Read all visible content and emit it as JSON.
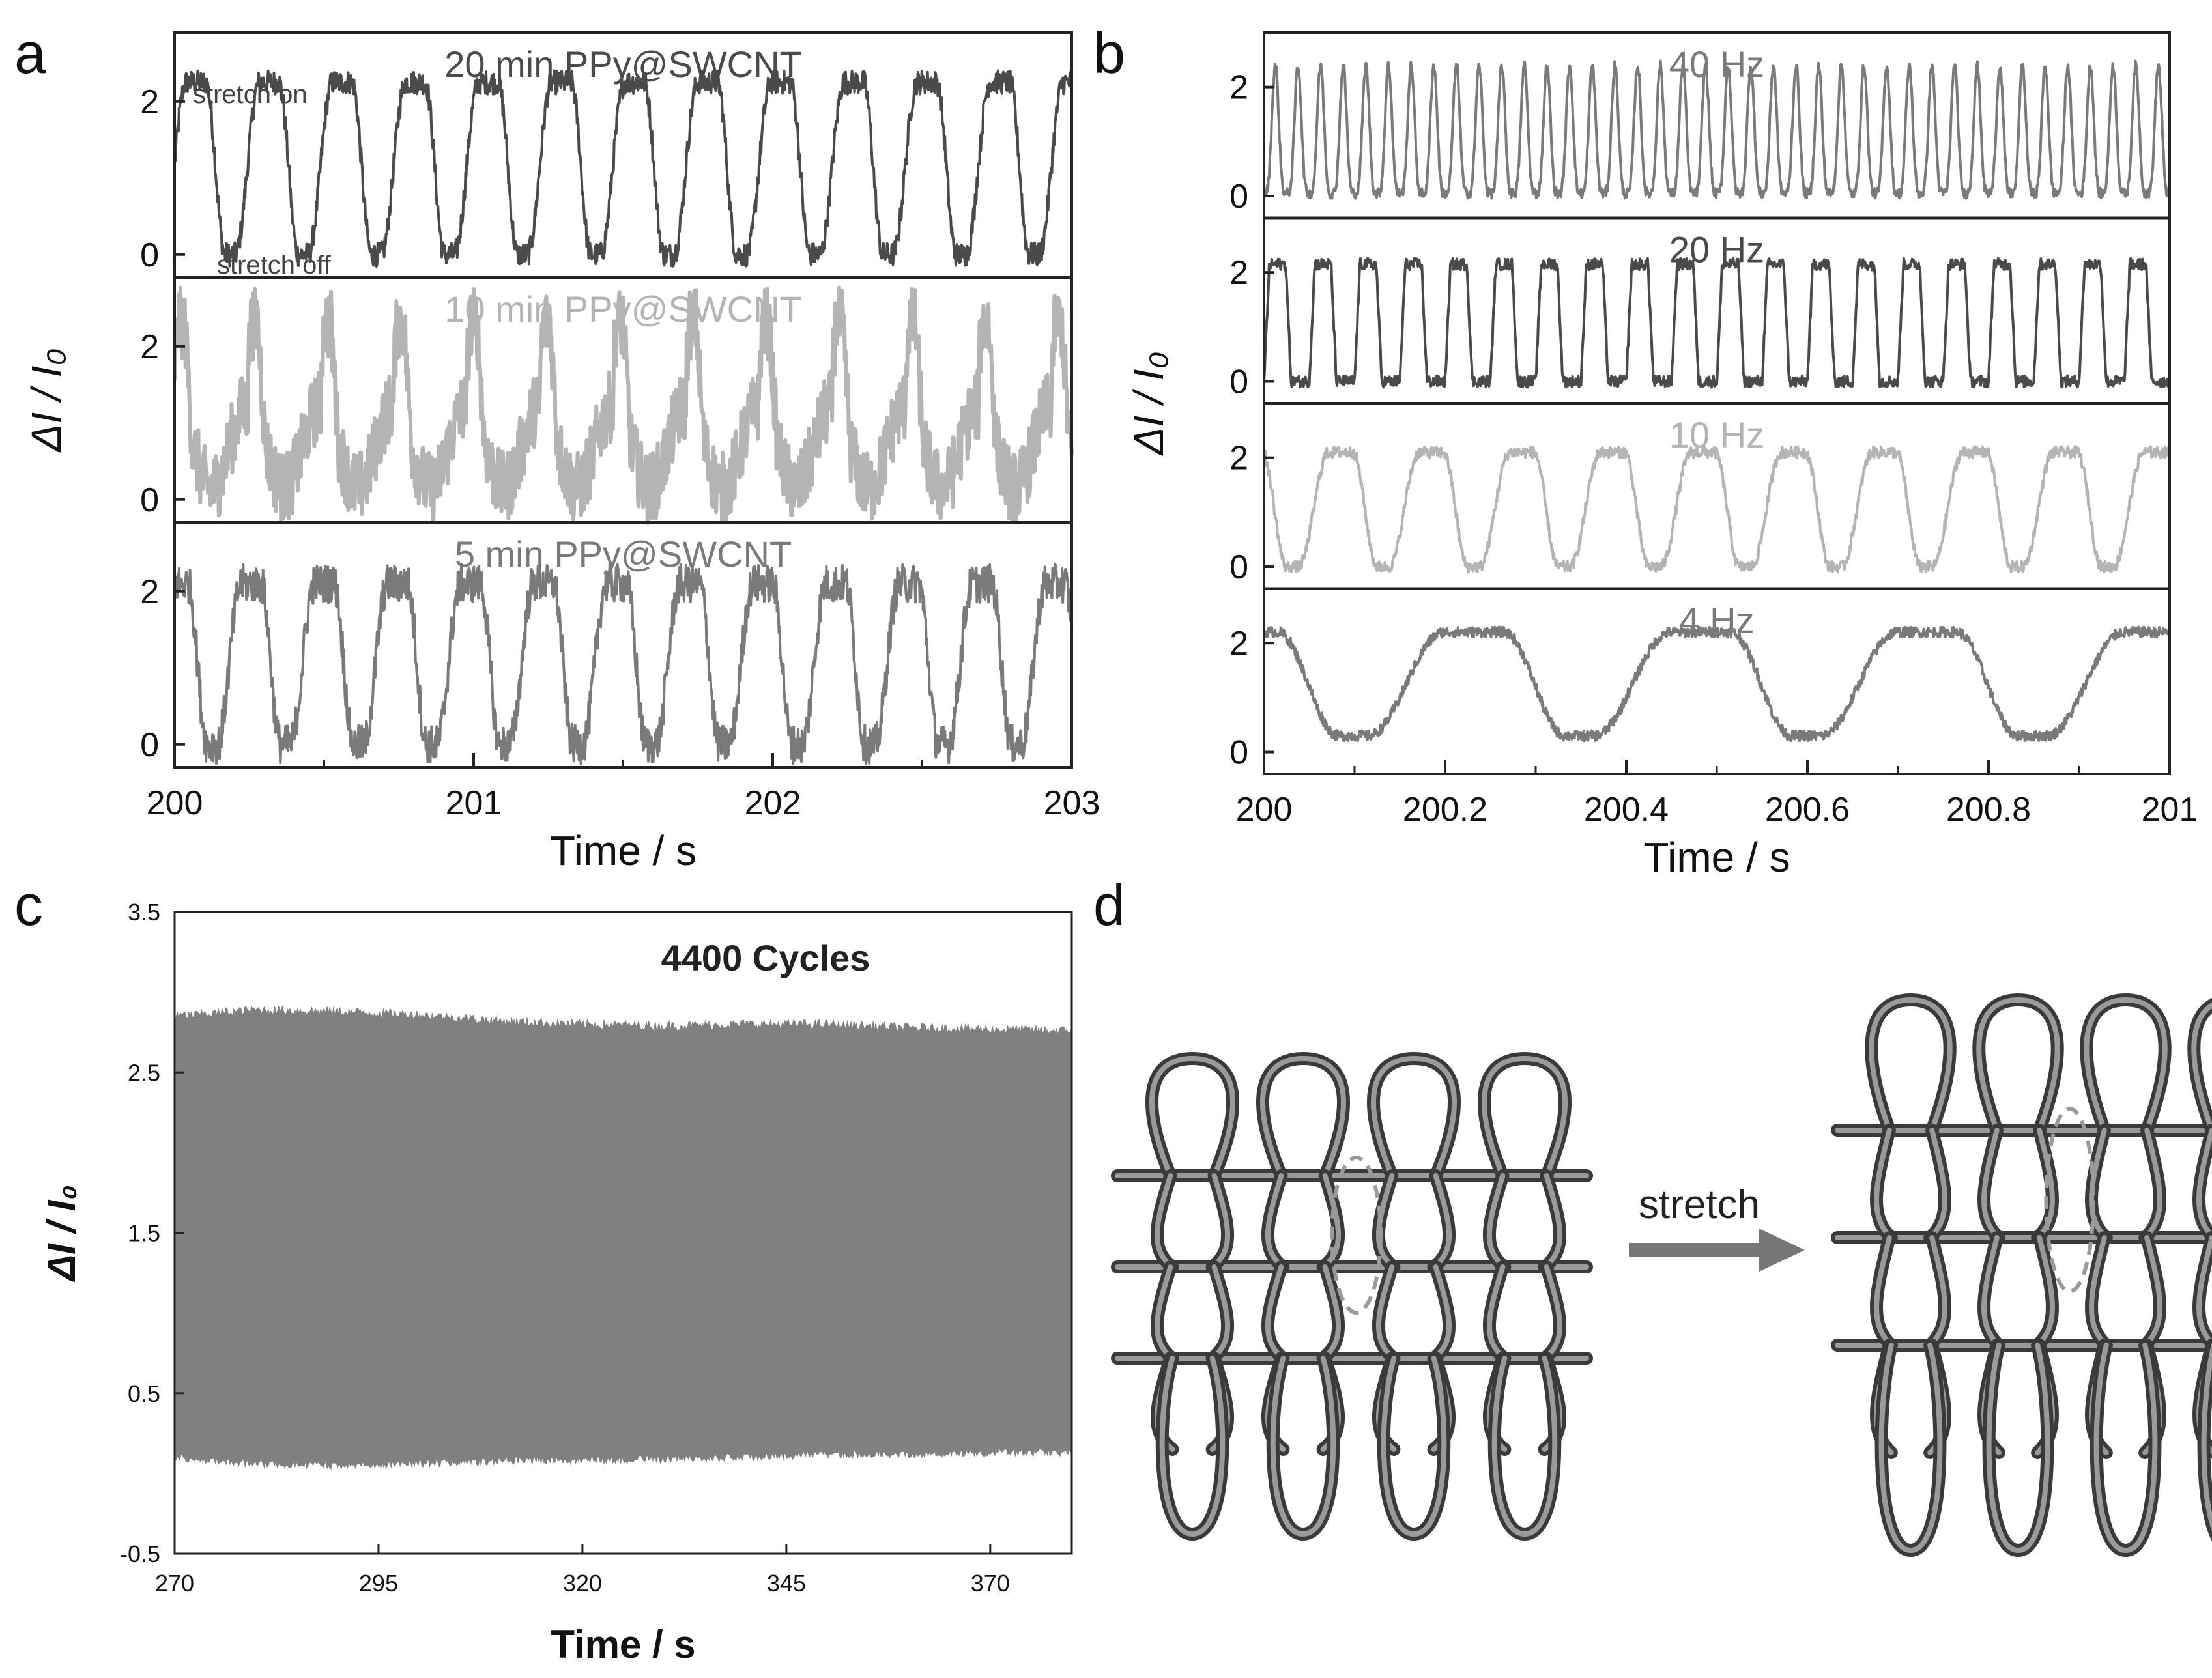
{
  "panel_letters": {
    "a": "a",
    "b": "b",
    "c": "c",
    "d": "d"
  },
  "colors": {
    "dark": "#4a4a4a",
    "light": "#b4b4b4",
    "medium": "#7a7a7a",
    "fill": "#808080",
    "frame": "#222222"
  },
  "diagram": {
    "arrow_label": "stretch"
  },
  "chart_data": [
    {
      "id": "a",
      "type": "line",
      "xlabel": "Time / s",
      "ylabel": "ΔI / I₀",
      "xlim": [
        200,
        203
      ],
      "x_ticks": [
        "200",
        "201",
        "202",
        "203"
      ],
      "y_ticks": [
        "0",
        "2"
      ],
      "ylim": [
        -0.3,
        2.9
      ],
      "subplots": [
        {
          "title": "20 min PPy@SWCNT",
          "color": "dark",
          "period_s": 0.2444,
          "phase_s": 0.06,
          "min": 0.0,
          "max": 2.25,
          "shape": "wave",
          "noise": 0.07,
          "annotations": [
            "stretch on",
            "stretch off"
          ]
        },
        {
          "title": "10 min PPy@SWCNT",
          "color": "light",
          "period_s": 0.2444,
          "phase_s": 0.0,
          "min": 0.15,
          "max": 2.3,
          "shape": "spiky",
          "noise": 0.22,
          "annotations": []
        },
        {
          "title": "5 min PPy@SWCNT",
          "color": "medium",
          "period_s": 0.2444,
          "phase_s": 0.0,
          "min": 0.0,
          "max": 2.1,
          "shape": "wave",
          "noise": 0.12,
          "annotations": []
        }
      ]
    },
    {
      "id": "b",
      "type": "line",
      "xlabel": "Time / s",
      "ylabel": "ΔI / I₀",
      "xlim": [
        200,
        201
      ],
      "x_ticks": [
        "200",
        "200.2",
        "200.4",
        "200.6",
        "200.8",
        "201"
      ],
      "y_ticks": [
        "0",
        "2"
      ],
      "ylim": [
        -0.4,
        3.0
      ],
      "subplots": [
        {
          "title": "40 Hz",
          "color": "medium",
          "period_s": 0.025,
          "phase_s": 0.0,
          "min": 0.05,
          "max": 2.4,
          "shape": "spike",
          "noise": 0.04,
          "annotations": []
        },
        {
          "title": "20 Hz",
          "color": "dark",
          "period_s": 0.05,
          "phase_s": 0.0,
          "min": 0.0,
          "max": 2.15,
          "shape": "square",
          "noise": 0.05,
          "annotations": []
        },
        {
          "title": "10 Hz",
          "color": "light",
          "period_s": 0.1,
          "phase_s": -0.02,
          "min": 0.0,
          "max": 2.1,
          "shape": "wave",
          "noise": 0.05,
          "annotations": []
        },
        {
          "title": "4 Hz",
          "color": "medium",
          "period_s": 0.25,
          "phase_s": -0.03,
          "min": 0.3,
          "max": 2.2,
          "shape": "wave",
          "noise": 0.05,
          "annotations": []
        }
      ]
    },
    {
      "id": "c",
      "type": "area",
      "title": "4400 Cycles",
      "xlabel": "Time / s",
      "ylabel": "ΔI / I₀",
      "xlim": [
        270,
        380
      ],
      "ylim": [
        -0.5,
        3.5
      ],
      "x_ticks": [
        "270",
        "295",
        "320",
        "345",
        "370"
      ],
      "y_ticks": [
        "-0.5",
        "0.5",
        "1.5",
        "2.5",
        "3.5"
      ],
      "band": {
        "x": [
          270,
          280,
          290,
          300,
          310,
          320,
          330,
          340,
          350,
          360,
          370,
          380
        ],
        "upper": [
          2.85,
          2.89,
          2.88,
          2.86,
          2.82,
          2.8,
          2.79,
          2.8,
          2.8,
          2.78,
          2.77,
          2.76
        ],
        "lower": [
          0.1,
          0.06,
          0.05,
          0.06,
          0.08,
          0.08,
          0.09,
          0.1,
          0.12,
          0.12,
          0.13,
          0.13
        ]
      }
    }
  ]
}
